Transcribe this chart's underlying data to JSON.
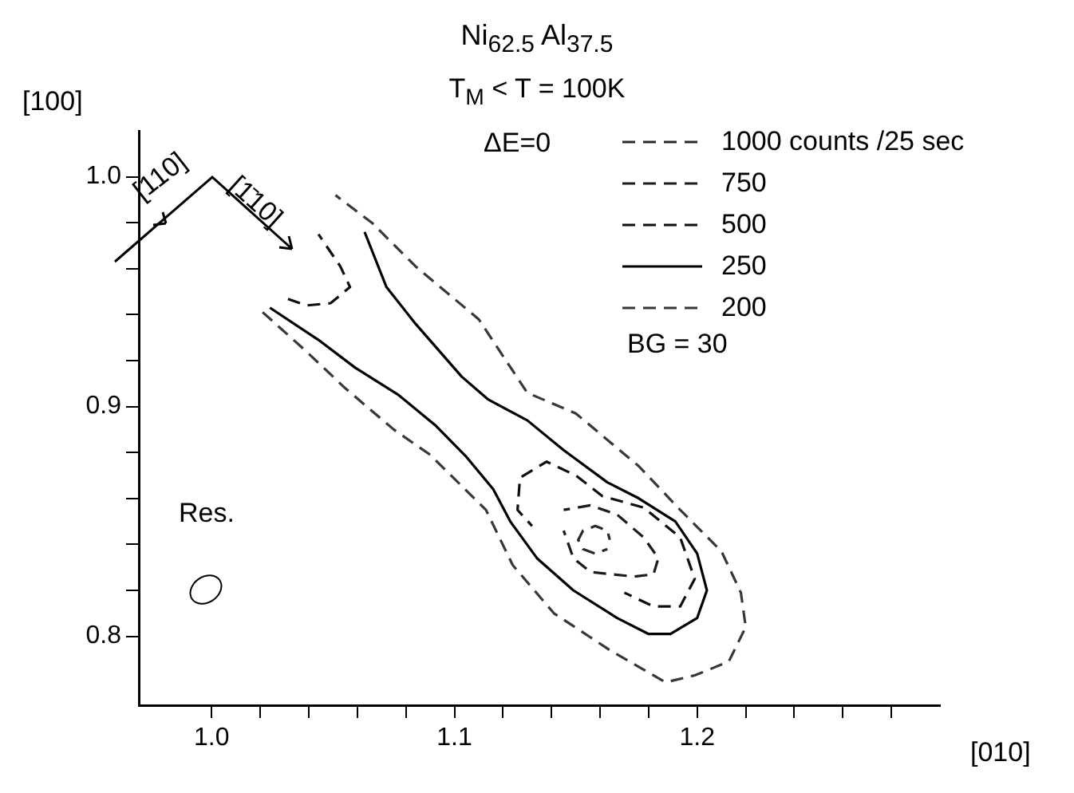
{
  "chart_data": {
    "type": "line",
    "title": "Ni$_{62.5}$  Al$_{37.5}$",
    "subtitle": "T$_{M}$ < T = 100K",
    "xlabel": "[010]",
    "ylabel": "[100]",
    "annotations": [
      "ΔE=0",
      "BG = 30",
      "[110]",
      "[1̄10]",
      "Res."
    ],
    "xlim": [
      0.97,
      1.3
    ],
    "ylim": [
      0.77,
      1.02
    ],
    "xticks": [
      {
        "value": 1,
        "label": "1.0"
      },
      {
        "value": 1.02,
        "label": null
      },
      {
        "value": 1.04,
        "label": null
      },
      {
        "value": 1.06,
        "label": null
      },
      {
        "value": 1.08,
        "label": null
      },
      1.1,
      {
        "value": 1.12,
        "label": null
      },
      {
        "value": 1.14,
        "label": null
      },
      {
        "value": 1.16,
        "label": null
      },
      {
        "value": 1.18,
        "label": null
      },
      1.2,
      {
        "value": 1.22,
        "label": null
      },
      {
        "value": 1.24,
        "label": null
      },
      {
        "value": 1.26,
        "label": null
      },
      {
        "value": 1.28,
        "label": null
      }
    ],
    "yticks": [
      0.8,
      {
        "value": 0.82,
        "label": null
      },
      {
        "value": 0.84,
        "label": null
      },
      {
        "value": 0.86,
        "label": null
      },
      {
        "value": 0.88,
        "label": null
      },
      0.9,
      {
        "value": 0.92,
        "label": null
      },
      {
        "value": 0.94,
        "label": null
      },
      {
        "value": 0.96,
        "label": null
      },
      {
        "value": 0.98,
        "label": null
      },
      {
        "value": 1,
        "label": "1.0"
      }
    ],
    "grid": false,
    "legend": "top right",
    "marker": "none",
    "series": [
      {
        "name": "1000 counts /25 sec",
        "color": "#2a2a2a",
        "line_style": "dashed",
        "x": [
          1.164,
          1.163,
          1.158,
          1.153,
          1.151,
          1.153,
          1.158,
          1.163
        ],
        "values": [
          0.842,
          0.846,
          0.848,
          0.846,
          0.842,
          0.838,
          0.836,
          0.838
        ]
      },
      {
        "name": "750",
        "color": "#1c1c1c",
        "line_style": "dashed",
        "x": [
          1.145,
          1.156,
          1.167,
          1.178,
          1.184,
          1.182,
          1.174,
          1.156,
          1.149,
          1.145
        ],
        "values": [
          0.855,
          0.857,
          0.853,
          0.843,
          0.834,
          0.827,
          0.826,
          0.828,
          0.834,
          0.846
        ]
      },
      {
        "name": "500",
        "color": "#0e0e0e",
        "line_style": "dashed",
        "x": [
          1.044,
          1.053,
          1.057,
          1.049,
          1.039,
          1.031,
          1.09,
          1.132,
          1.126,
          1.127,
          1.138,
          1.15,
          1.161,
          1.178,
          1.193,
          1.199,
          1.193,
          1.182,
          1.17
        ],
        "values": [
          0.975,
          0.961,
          0.952,
          0.945,
          0.944,
          0.947,
          null,
          0.848,
          0.855,
          0.869,
          0.876,
          0.87,
          0.861,
          0.856,
          0.843,
          0.825,
          0.813,
          0.813,
          0.819
        ]
      },
      {
        "name": "250",
        "color": "#000000",
        "line_style": "solid",
        "x": [
          1.063,
          1.072,
          1.084,
          1.103,
          1.114,
          1.13,
          1.145,
          1.163,
          1.176,
          1.191,
          1.2,
          1.204,
          1.2,
          1.189,
          1.18,
          1.167,
          1.149,
          1.134,
          1.123,
          1.116,
          1.105,
          1.092,
          1.077,
          1.059,
          1.044,
          1.024
        ],
        "values": [
          0.976,
          0.952,
          0.936,
          0.913,
          0.903,
          0.894,
          0.881,
          0.867,
          0.86,
          0.85,
          0.836,
          0.82,
          0.808,
          0.801,
          0.801,
          0.808,
          0.82,
          0.834,
          0.85,
          0.864,
          0.878,
          0.892,
          0.905,
          0.917,
          0.929,
          0.943
        ]
      },
      {
        "name": "200",
        "color": "#383838",
        "line_style": "dashed",
        "x": [
          1.051,
          1.066,
          1.084,
          1.11,
          1.13,
          1.15,
          1.176,
          1.193,
          1.21,
          1.218,
          1.22,
          1.213,
          1.199,
          1.187,
          1.164,
          1.141,
          1.124,
          1.113,
          1.09,
          1.075,
          1.055,
          1.039,
          1.02
        ],
        "values": [
          0.992,
          0.98,
          0.961,
          0.938,
          0.906,
          0.897,
          0.874,
          0.855,
          0.837,
          0.819,
          0.804,
          0.789,
          0.783,
          0.78,
          0.794,
          0.81,
          0.831,
          0.855,
          0.879,
          0.89,
          0.908,
          0.924,
          0.942
        ]
      }
    ]
  }
}
